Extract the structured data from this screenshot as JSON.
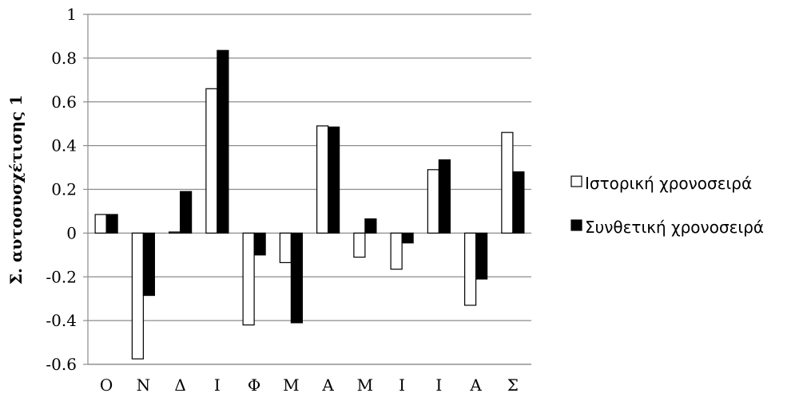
{
  "chart_data": {
    "type": "bar",
    "title": "",
    "xlabel": "",
    "ylabel": "Σ. αυτοσυσχέτισης 1",
    "categories": [
      "Ο",
      "Ν",
      "Δ",
      "Ι",
      "Φ",
      "Μ",
      "Α",
      "Μ",
      "Ι",
      "Ι",
      "Α",
      "Σ"
    ],
    "series": [
      {
        "name": "Ιστορική χρονοσειρά",
        "color": "#ffffff",
        "values": [
          0.085,
          -0.575,
          0.005,
          0.66,
          -0.42,
          -0.135,
          0.49,
          -0.11,
          -0.165,
          0.29,
          -0.33,
          0.46
        ]
      },
      {
        "name": "Συνθετική χρονοσειρά",
        "color": "#000000",
        "values": [
          0.085,
          -0.285,
          0.19,
          0.835,
          -0.1,
          -0.41,
          0.485,
          0.065,
          -0.045,
          0.335,
          -0.21,
          0.28
        ]
      }
    ],
    "ylim": [
      -0.6,
      1
    ],
    "yticks": [
      "-0.6",
      "-0.4",
      "-0.2",
      "0",
      "0.2",
      "0.4",
      "0.6",
      "0.8",
      "1"
    ],
    "grid": true,
    "legend_position": "right"
  }
}
